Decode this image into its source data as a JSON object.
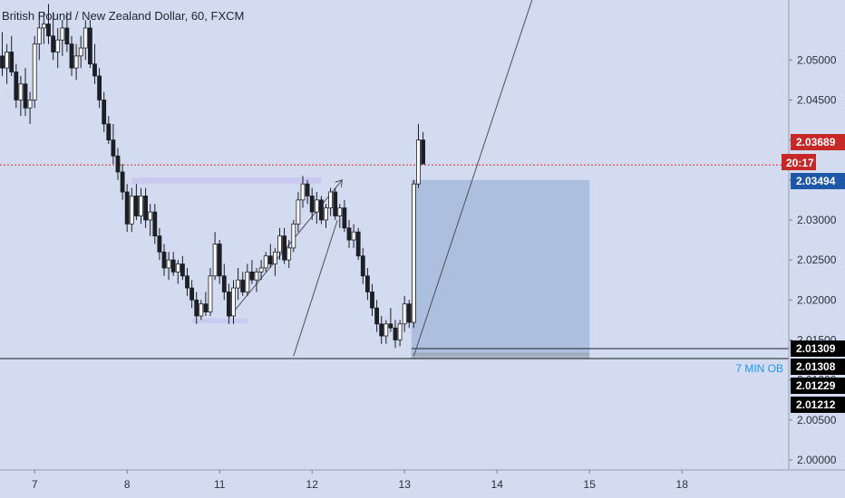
{
  "header": {
    "title": "British Pound / New Zealand Dollar, 60, FXCM"
  },
  "colors": {
    "background": "#d2dbef",
    "candle_up": "#ffffff",
    "candle_down": "#1d1f26",
    "candle_border": "#1d1f26",
    "zone_fill": "#a9bbdc",
    "zone_lavender": "#c9c8f0",
    "price_line": "#d32f2f",
    "badge_red": "#c62828",
    "badge_blue": "#1e56a8",
    "badge_black": "#000000",
    "annotation_text": "#2196f3"
  },
  "chart_data": {
    "type": "candlestick",
    "title": "British Pound / New Zealand Dollar, 60, FXCM",
    "ylim": [
      1.99875,
      2.0575
    ],
    "y_ticks": [
      "2.05000",
      "2.04500",
      "2.04000",
      "2.03500",
      "2.03000",
      "2.02500",
      "2.02000",
      "2.01500",
      "2.01000",
      "2.00500",
      "2.00000"
    ],
    "x_ticks": [
      "7",
      "8",
      "11",
      "12",
      "13",
      "14",
      "15",
      "18"
    ],
    "x_tick_index": [
      7,
      27,
      47,
      67,
      87,
      107,
      127,
      147
    ],
    "candles": [
      [
        2.0505,
        2.0535,
        2.048,
        2.049
      ],
      [
        2.049,
        2.052,
        2.047,
        2.051
      ],
      [
        2.051,
        2.053,
        2.048,
        2.0485
      ],
      [
        2.0485,
        2.0495,
        2.044,
        2.045
      ],
      [
        2.045,
        2.048,
        2.043,
        2.047
      ],
      [
        2.047,
        2.049,
        2.043,
        2.044
      ],
      [
        2.044,
        2.046,
        2.042,
        2.045
      ],
      [
        2.045,
        2.053,
        2.044,
        2.052
      ],
      [
        2.052,
        2.056,
        2.05,
        2.054
      ],
      [
        2.054,
        2.056,
        2.052,
        2.0545
      ],
      [
        2.0545,
        2.057,
        2.052,
        2.053
      ],
      [
        2.053,
        2.056,
        2.05,
        2.051
      ],
      [
        2.051,
        2.054,
        2.049,
        2.0525
      ],
      [
        2.0525,
        2.055,
        2.0505,
        2.054
      ],
      [
        2.054,
        2.056,
        2.051,
        2.052
      ],
      [
        2.052,
        2.053,
        2.048,
        2.049
      ],
      [
        2.049,
        2.052,
        2.0475,
        2.0505
      ],
      [
        2.0505,
        2.053,
        2.049,
        2.0515
      ],
      [
        2.0515,
        2.055,
        2.05,
        2.054
      ],
      [
        2.054,
        2.055,
        2.049,
        2.0495
      ],
      [
        2.0495,
        2.052,
        2.047,
        2.048
      ],
      [
        2.048,
        2.049,
        2.044,
        2.045
      ],
      [
        2.045,
        2.046,
        2.041,
        2.042
      ],
      [
        2.042,
        2.043,
        2.0395,
        2.04
      ],
      [
        2.04,
        2.042,
        2.037,
        2.038
      ],
      [
        2.038,
        2.039,
        2.035,
        2.036
      ],
      [
        2.036,
        2.037,
        2.0325,
        2.0335
      ],
      [
        2.0335,
        2.0345,
        2.0285,
        2.0295
      ],
      [
        2.0295,
        2.034,
        2.0285,
        2.033
      ],
      [
        2.033,
        2.0345,
        2.03,
        2.0305
      ],
      [
        2.0305,
        2.034,
        2.0295,
        2.033
      ],
      [
        2.033,
        2.034,
        2.029,
        2.03
      ],
      [
        2.03,
        2.032,
        2.028,
        2.031
      ],
      [
        2.031,
        2.032,
        2.027,
        2.028
      ],
      [
        2.028,
        2.029,
        2.025,
        2.026
      ],
      [
        2.026,
        2.027,
        2.023,
        2.024
      ],
      [
        2.024,
        2.026,
        2.0225,
        2.025
      ],
      [
        2.025,
        2.026,
        2.023,
        2.0235
      ],
      [
        2.0235,
        2.025,
        2.022,
        2.0245
      ],
      [
        2.0245,
        2.0255,
        2.0225,
        2.023
      ],
      [
        2.023,
        2.024,
        2.0205,
        2.0215
      ],
      [
        2.0215,
        2.0225,
        2.019,
        2.02
      ],
      [
        2.02,
        2.021,
        2.017,
        2.018
      ],
      [
        2.018,
        2.02,
        2.0175,
        2.0195
      ],
      [
        2.0195,
        2.021,
        2.018,
        2.0185
      ],
      [
        2.0185,
        2.024,
        2.018,
        2.023
      ],
      [
        2.023,
        2.0285,
        2.0225,
        2.027
      ],
      [
        2.027,
        2.0275,
        2.022,
        2.023
      ],
      [
        2.023,
        2.0245,
        2.02,
        2.021
      ],
      [
        2.021,
        2.022,
        2.017,
        2.018
      ],
      [
        2.018,
        2.0225,
        2.017,
        2.0215
      ],
      [
        2.0215,
        2.024,
        2.02,
        2.0225
      ],
      [
        2.0225,
        2.0235,
        2.0205,
        2.021
      ],
      [
        2.021,
        2.0245,
        2.0205,
        2.0235
      ],
      [
        2.0235,
        2.025,
        2.022,
        2.0225
      ],
      [
        2.0225,
        2.024,
        2.021,
        2.0235
      ],
      [
        2.0235,
        2.025,
        2.0225,
        2.024
      ],
      [
        2.024,
        2.026,
        2.0235,
        2.0255
      ],
      [
        2.0255,
        2.027,
        2.024,
        2.0245
      ],
      [
        2.0245,
        2.0265,
        2.023,
        2.026
      ],
      [
        2.026,
        2.029,
        2.025,
        2.028
      ],
      [
        2.028,
        2.029,
        2.0245,
        2.025
      ],
      [
        2.025,
        2.0275,
        2.024,
        2.0265
      ],
      [
        2.0265,
        2.03,
        2.026,
        2.0295
      ],
      [
        2.0295,
        2.0335,
        2.0285,
        2.0325
      ],
      [
        2.0325,
        2.0355,
        2.0315,
        2.0345
      ],
      [
        2.0345,
        2.035,
        2.032,
        2.033
      ],
      [
        2.033,
        2.034,
        2.03,
        2.031
      ],
      [
        2.031,
        2.0335,
        2.0295,
        2.0325
      ],
      [
        2.0325,
        2.033,
        2.0295,
        2.03
      ],
      [
        2.03,
        2.032,
        2.029,
        2.0315
      ],
      [
        2.0315,
        2.034,
        2.0305,
        2.0335
      ],
      [
        2.0335,
        2.034,
        2.03,
        2.0305
      ],
      [
        2.0305,
        2.032,
        2.029,
        2.0315
      ],
      [
        2.0315,
        2.0325,
        2.0285,
        2.029
      ],
      [
        2.029,
        2.03,
        2.0265,
        2.0275
      ],
      [
        2.0275,
        2.0295,
        2.0265,
        2.0285
      ],
      [
        2.0285,
        2.029,
        2.025,
        2.0255
      ],
      [
        2.0255,
        2.0265,
        2.022,
        2.023
      ],
      [
        2.023,
        2.024,
        2.02,
        2.021
      ],
      [
        2.021,
        2.022,
        2.018,
        2.019
      ],
      [
        2.019,
        2.02,
        2.016,
        2.017
      ],
      [
        2.017,
        2.018,
        2.0145,
        2.0155
      ],
      [
        2.0155,
        2.0175,
        2.0145,
        2.017
      ],
      [
        2.017,
        2.019,
        2.016,
        2.0165
      ],
      [
        2.0165,
        2.0175,
        2.014,
        2.015
      ],
      [
        2.015,
        2.0175,
        2.0142,
        2.017
      ],
      [
        2.017,
        2.0205,
        2.016,
        2.0195
      ],
      [
        2.0195,
        2.02,
        2.0165,
        2.0172
      ],
      [
        2.0172,
        2.035,
        2.0165,
        2.0345
      ],
      [
        2.0345,
        2.042,
        2.034,
        2.04
      ],
      [
        2.04,
        2.041,
        2.0375,
        2.037
      ]
    ],
    "current_price": "2.03689",
    "countdown": "20:17",
    "price_labels": [
      "2.03494",
      "2.01309",
      "2.01308",
      "2.01229",
      "2.01212"
    ],
    "horizontal_line_level": 2.01309,
    "zones": [
      {
        "name": "blue-box",
        "y_top": 2.035,
        "y_bottom": 2.01309,
        "x_start": 88.5,
        "x_end": 127
      },
      {
        "name": "gray-strip",
        "y_top": 2.0134,
        "y_bottom": 2.0126,
        "x_start": 88.5,
        "x_end": 127
      },
      {
        "name": "lavender-top",
        "y_top": 2.0353,
        "y_bottom": 2.0345,
        "x_start": 28,
        "x_end": 69
      },
      {
        "name": "lavender-bottom",
        "y_top": 2.0177,
        "y_bottom": 2.0171,
        "x_start": 41,
        "x_end": 53
      }
    ],
    "annotations": [
      {
        "text": "7 MIN OB",
        "price": 2.0126
      }
    ],
    "trendlines": [
      {
        "x1": 49,
        "y1": 2.0178,
        "x2": 73.5,
        "y2": 2.035,
        "arrow": true
      },
      {
        "x1": 63,
        "y1": 2.013,
        "x2": 72.5,
        "y2": 2.03,
        "arrow": false
      },
      {
        "x1": 89,
        "y1": 2.013,
        "x2": 116,
        "y2": 2.06,
        "arrow": false
      }
    ]
  }
}
